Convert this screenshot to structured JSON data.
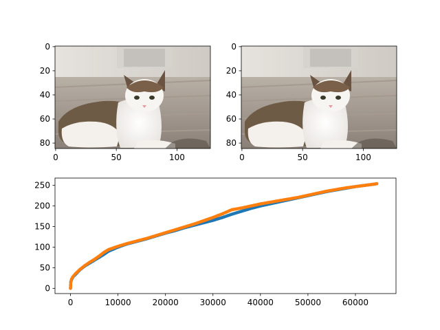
{
  "figure": {
    "background": "#ffffff"
  },
  "chart_data": [
    {
      "type": "image",
      "description_icon": "cat-photo",
      "image_size": [
        128,
        85
      ],
      "xticks": [
        0,
        50,
        100
      ],
      "yticks": [
        0,
        20,
        40,
        60,
        80
      ],
      "xlim": [
        -0.5,
        127.5
      ],
      "ylim": [
        84.5,
        -0.5
      ]
    },
    {
      "type": "image",
      "description_icon": "cat-photo",
      "image_size": [
        128,
        85
      ],
      "xticks": [
        0,
        50,
        100
      ],
      "yticks": [
        0,
        20,
        40,
        60,
        80
      ],
      "xlim": [
        -0.5,
        127.5
      ],
      "ylim": [
        84.5,
        -0.5
      ]
    },
    {
      "type": "scatter",
      "xlim": [
        -3264,
        68544
      ],
      "ylim": [
        -12.75,
        267.75
      ],
      "xticks": [
        0,
        10000,
        20000,
        30000,
        40000,
        50000,
        60000
      ],
      "yticks": [
        0,
        50,
        100,
        150,
        200,
        250
      ],
      "series": [
        {
          "color": "#1f77b4",
          "points": [
            [
              0,
              0
            ],
            [
              50,
              15
            ],
            [
              200,
              20
            ],
            [
              500,
              27
            ],
            [
              1000,
              33
            ],
            [
              2000,
              45
            ],
            [
              3000,
              54
            ],
            [
              4000,
              61
            ],
            [
              5000,
              68
            ],
            [
              6000,
              75
            ],
            [
              7000,
              82
            ],
            [
              8000,
              90
            ],
            [
              9000,
              95
            ],
            [
              10000,
              100
            ],
            [
              12000,
              108
            ],
            [
              14000,
              114
            ],
            [
              16000,
              120
            ],
            [
              18000,
              127
            ],
            [
              20000,
              134
            ],
            [
              22000,
              140
            ],
            [
              24000,
              147
            ],
            [
              26000,
              153
            ],
            [
              28000,
              159
            ],
            [
              30000,
              165
            ],
            [
              32000,
              172
            ],
            [
              34000,
              180
            ],
            [
              36000,
              187
            ],
            [
              38000,
              194
            ],
            [
              40000,
              200
            ],
            [
              42000,
              205
            ],
            [
              44000,
              210
            ],
            [
              46000,
              215
            ],
            [
              48000,
              220
            ],
            [
              50000,
              225
            ],
            [
              52000,
              230
            ],
            [
              54000,
              235
            ],
            [
              56000,
              239
            ],
            [
              58000,
              243
            ],
            [
              60000,
              247
            ],
            [
              62000,
              250
            ],
            [
              64000,
              253
            ],
            [
              64500,
              254
            ]
          ]
        },
        {
          "color": "#ff7f0e",
          "points": [
            [
              0,
              0
            ],
            [
              30,
              6
            ],
            [
              60,
              14
            ],
            [
              200,
              22
            ],
            [
              500,
              28
            ],
            [
              1000,
              35
            ],
            [
              2000,
              46
            ],
            [
              3000,
              55
            ],
            [
              4000,
              63
            ],
            [
              5000,
              70
            ],
            [
              6000,
              78
            ],
            [
              7000,
              87
            ],
            [
              8000,
              94
            ],
            [
              9000,
              98
            ],
            [
              10000,
              102
            ],
            [
              12000,
              109
            ],
            [
              14000,
              115
            ],
            [
              16000,
              121
            ],
            [
              18000,
              128
            ],
            [
              20000,
              135
            ],
            [
              22000,
              142
            ],
            [
              24000,
              149
            ],
            [
              26000,
              156
            ],
            [
              28000,
              164
            ],
            [
              30000,
              172
            ],
            [
              32000,
              181
            ],
            [
              34000,
              191
            ],
            [
              36000,
              195
            ],
            [
              38000,
              200
            ],
            [
              40000,
              205
            ],
            [
              42000,
              209
            ],
            [
              44000,
              213
            ],
            [
              46000,
              217
            ],
            [
              48000,
              221
            ],
            [
              50000,
              226
            ],
            [
              52000,
              231
            ],
            [
              54000,
              236
            ],
            [
              56000,
              240
            ],
            [
              58000,
              244
            ],
            [
              60000,
              247
            ],
            [
              62000,
              250
            ],
            [
              64000,
              253
            ],
            [
              64500,
              254
            ]
          ]
        }
      ]
    }
  ]
}
